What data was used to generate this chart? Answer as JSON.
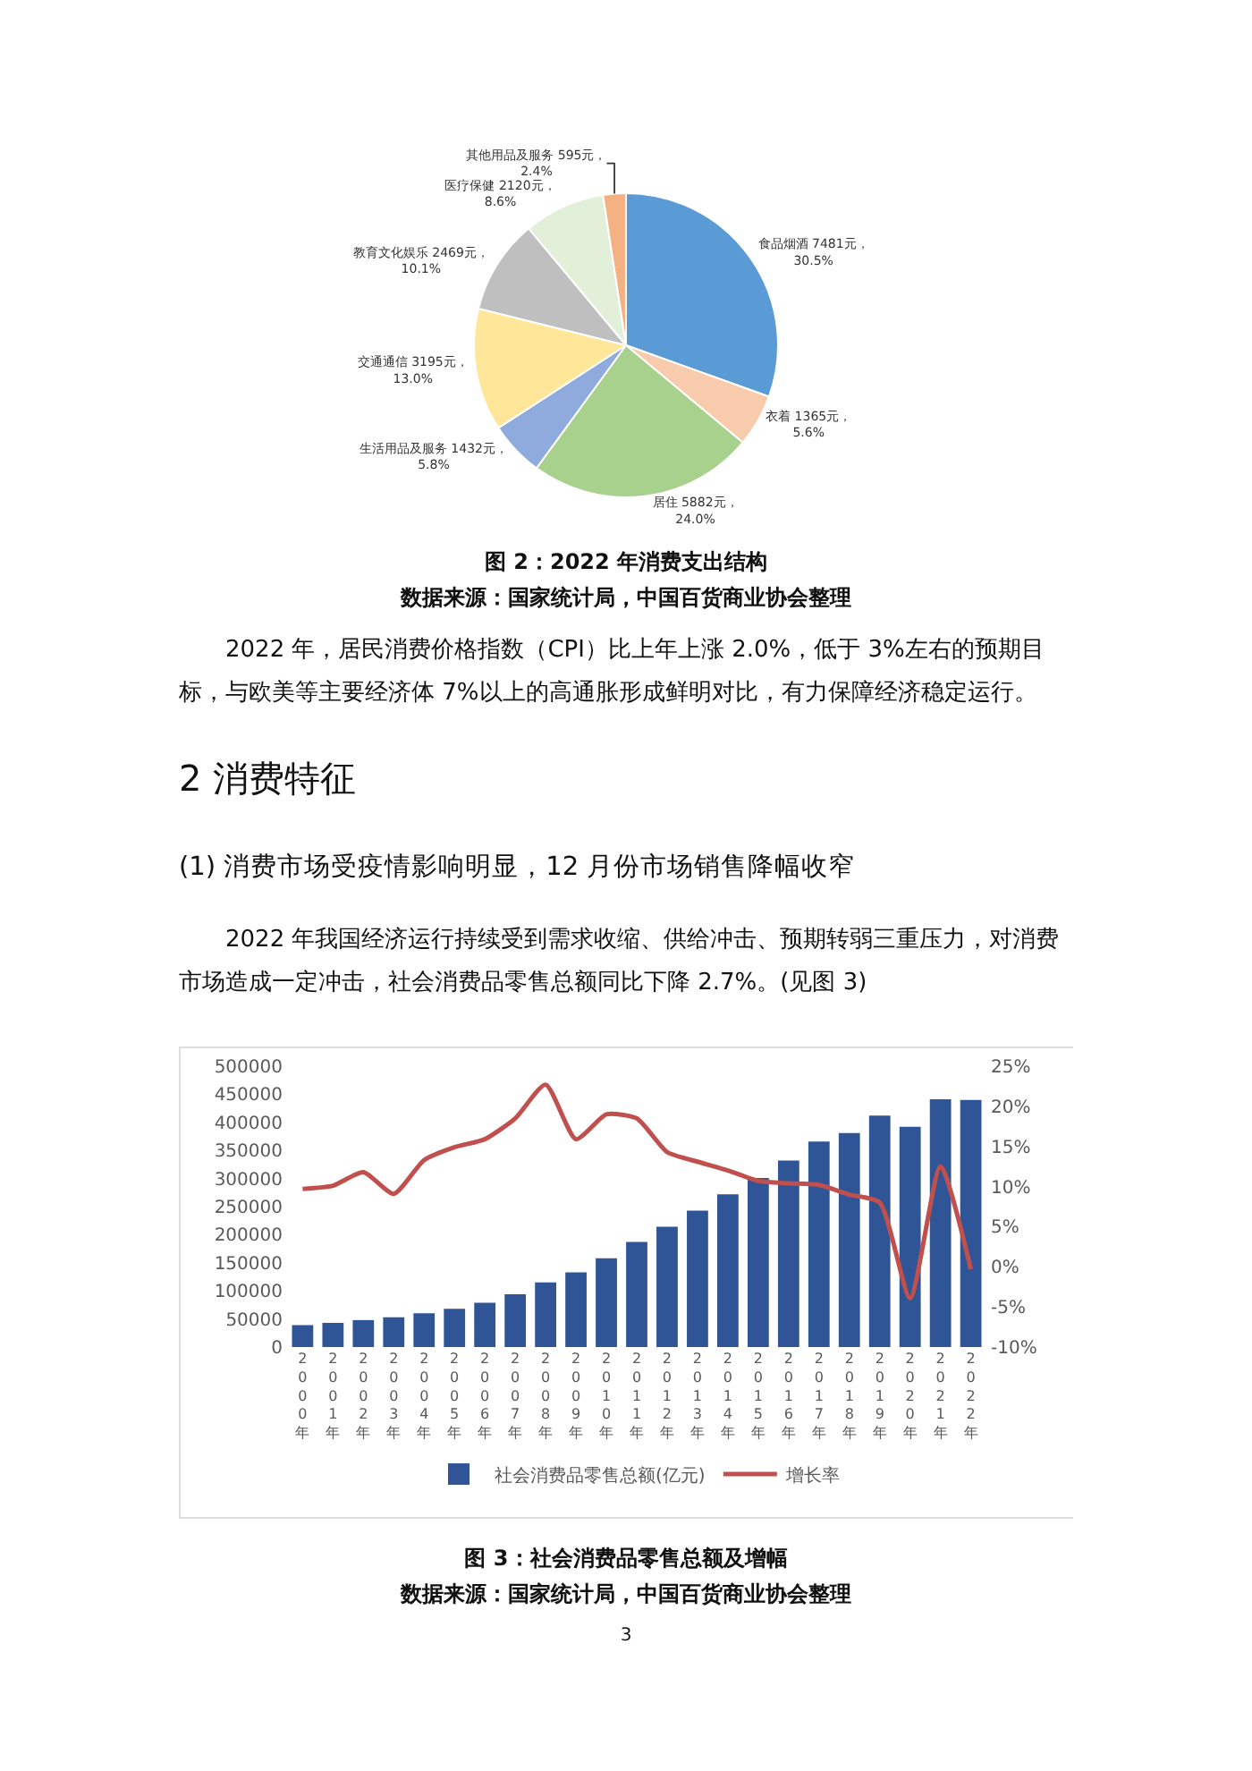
{
  "chart_data": [
    {
      "type": "pie",
      "categories": [
        "食品烟酒",
        "衣着",
        "居住",
        "生活用品及服务",
        "交通通信",
        "教育文化娱乐",
        "医疗保健",
        "其他用品及服务"
      ],
      "values": [
        7481,
        1365,
        5882,
        1432,
        3195,
        2469,
        2120,
        595
      ],
      "colors": [
        "#5b9bd5",
        "#f8cbad",
        "#a9d18e",
        "#8faadc",
        "#ffe699",
        "#bfbfbf",
        "#e2f0d9",
        "#f4b183"
      ],
      "value_labels": [
        "7481元，\n30.5%",
        "1365元，\n5.6%",
        "5882元，\n24.0%",
        "1432元，\n5.8%",
        "3195元，\n13.0%",
        "2469元，\n10.1%",
        "2120元，\n8.6%",
        "595元，\n2.4%"
      ],
      "annotations": [
        "图 2：2022 年消费支出结构",
        "数据来源：国家统计局，中国百货商业协会整理"
      ]
    },
    {
      "type": "other",
      "annotations": [
        "2022 年，居民消费价格指数（CPI）比上年上涨 2.0%，低于 3%左右的预期目标，与欧美等主要经济体 7%以上的高通胀形成鲜明对比，有力保障经济稳定运行。",
        "2  消费特征",
        "(1)  消费市场受疫情影响明显，12 月份市场销售降幅收窄",
        "2022 年我国经济运行持续受到需求收缩、供给冲击、预期转弱三重压力，对消费市场造成一定冲击，社会消费品零售总额同比下降 2.7%。(见图 3)"
      ]
    },
    {
      "type": "bar",
      "title": "图 3：社会消费品零售总额及增幅",
      "categories": [
        "2000年",
        "2001年",
        "2002年",
        "2003年",
        "2004年",
        "2005年",
        "2006年",
        "2007年",
        "2008年",
        "2009年",
        "2010年",
        "2011年",
        "2012年",
        "2013年",
        "2014年",
        "2015年",
        "2016年",
        "2017年",
        "2018年",
        "2019年",
        "2020年",
        "2021年",
        "2022年"
      ],
      "series": [
        {
          "name": "社会消费品零售总额(亿元)",
          "color": "#2f5597",
          "values": [
            39000,
            43000,
            48000,
            53000,
            60000,
            68000,
            79000,
            94000,
            115000,
            133000,
            158000,
            187000,
            214000,
            243000,
            272000,
            301000,
            332000,
            366000,
            381000,
            412000,
            392000,
            441000,
            440000
          ]
        },
        {
          "name": "增长率",
          "type": "line",
          "axis": "y2",
          "color": "#c0504d",
          "values": [
            9.7,
            10.1,
            11.8,
            9.1,
            13.3,
            14.9,
            15.9,
            18.5,
            22.7,
            15.9,
            19.0,
            18.5,
            14.3,
            13.1,
            12.0,
            10.7,
            10.4,
            10.2,
            9.0,
            8.0,
            -3.9,
            12.5,
            -0.3
          ]
        }
      ],
      "ylim": [
        0,
        500000
      ],
      "yticks": [
        0,
        50000,
        100000,
        150000,
        200000,
        250000,
        300000,
        350000,
        400000,
        450000,
        500000
      ],
      "y2lim": [
        -10,
        25
      ],
      "y2ticks": [
        {
          "value": -10,
          "label": "-10%"
        },
        {
          "value": -5,
          "label": "-5%"
        },
        {
          "value": 0,
          "label": "0%"
        },
        {
          "value": 5,
          "label": "5%"
        },
        {
          "value": 10,
          "label": "10%"
        },
        {
          "value": 15,
          "label": "15%"
        },
        {
          "value": 20,
          "label": "20%"
        },
        {
          "value": 25,
          "label": "25%"
        }
      ],
      "legend": "bottom",
      "annotations": [
        "数据来源：国家统计局，中国百货商业协会整理",
        "3"
      ]
    }
  ]
}
